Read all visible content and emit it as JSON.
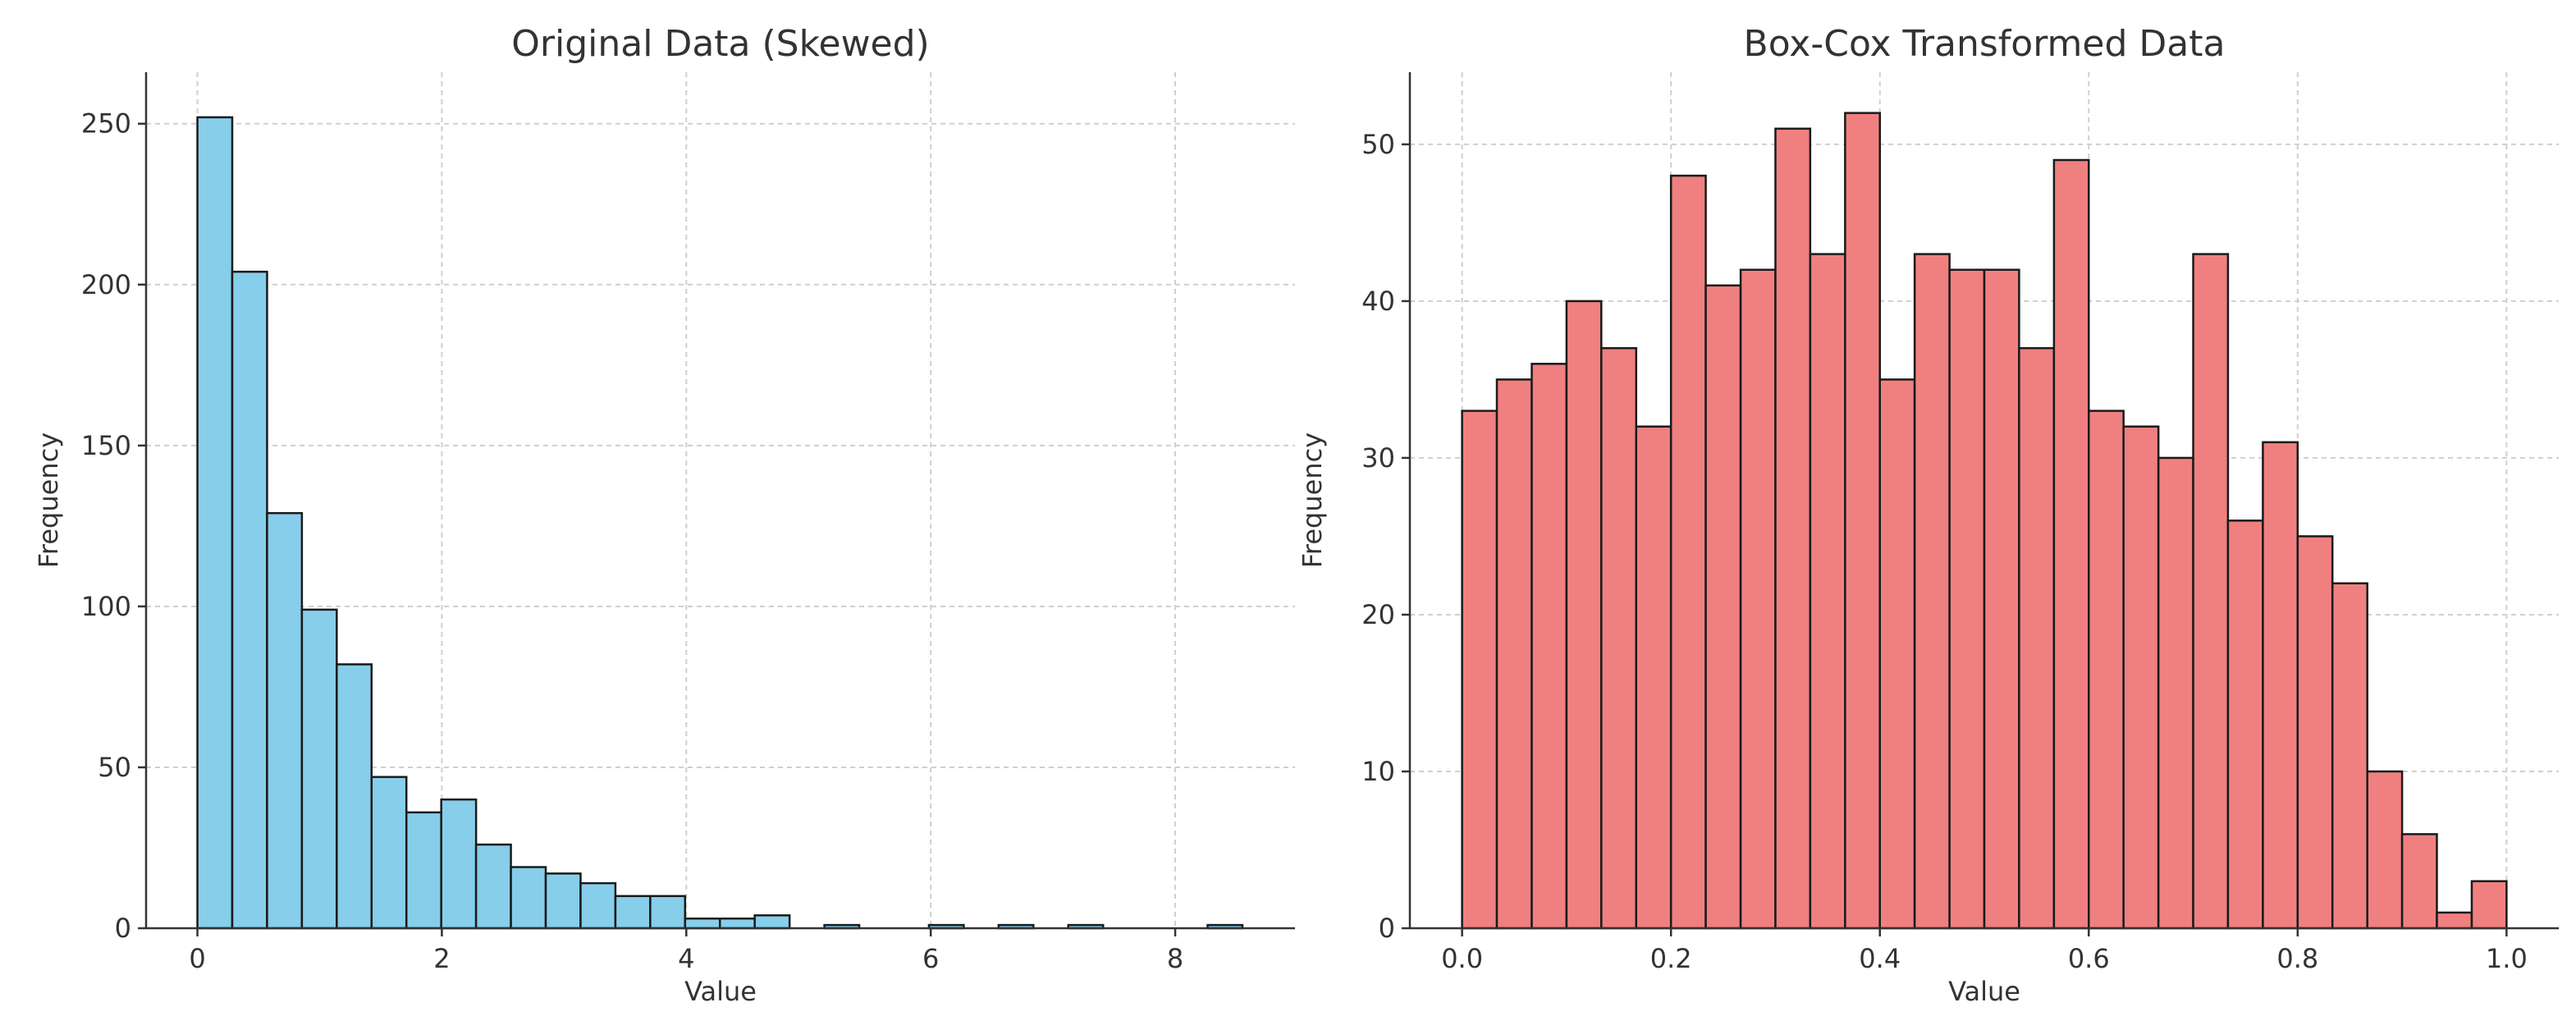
{
  "chart_data": [
    {
      "type": "bar",
      "title": "Original Data (Skewed)",
      "xlabel": "Value",
      "ylabel": "Frequency",
      "xlim": [
        -0.42,
        8.98
      ],
      "ylim": [
        0,
        266
      ],
      "xticks": [
        "0",
        "2",
        "4",
        "6",
        "8"
      ],
      "yticks": [
        "0",
        "50",
        "100",
        "150",
        "200",
        "250"
      ],
      "grid": true,
      "color": "#87ceeb",
      "edge_color": "#1a1a1a",
      "bin_edges": [
        0.0,
        0.285,
        0.57,
        0.855,
        1.14,
        1.425,
        1.71,
        1.995,
        2.28,
        2.565,
        2.85,
        3.135,
        3.42,
        3.705,
        3.99,
        4.275,
        4.56,
        4.845,
        5.13,
        5.415,
        5.7,
        5.985,
        6.27,
        6.555,
        6.84,
        7.125,
        7.41,
        7.695,
        7.98,
        8.265,
        8.55
      ],
      "values": [
        252,
        204,
        129,
        99,
        82,
        47,
        36,
        40,
        26,
        19,
        17,
        14,
        10,
        10,
        3,
        3,
        4,
        0,
        1,
        0,
        0,
        1,
        0,
        1,
        0,
        1,
        0,
        0,
        0,
        1
      ]
    },
    {
      "type": "bar",
      "title": "Box-Cox Transformed Data",
      "xlabel": "Value",
      "ylabel": "Frequency",
      "xlim": [
        -0.05,
        1.05
      ],
      "ylim": [
        0,
        54.6
      ],
      "xticks": [
        "0.0",
        "0.2",
        "0.4",
        "0.6",
        "0.8",
        "1.0"
      ],
      "yticks": [
        "0",
        "10",
        "20",
        "30",
        "40",
        "50"
      ],
      "grid": true,
      "color": "#f08080",
      "edge_color": "#1a1a1a",
      "bin_edges": [
        0.0,
        0.0333,
        0.0667,
        0.1,
        0.1333,
        0.1667,
        0.2,
        0.2333,
        0.2667,
        0.3,
        0.3333,
        0.3667,
        0.4,
        0.4333,
        0.4667,
        0.5,
        0.5333,
        0.5667,
        0.6,
        0.6333,
        0.6667,
        0.7,
        0.7333,
        0.7667,
        0.8,
        0.8333,
        0.8667,
        0.9,
        0.9333,
        0.9667,
        1.0
      ],
      "values": [
        33,
        35,
        36,
        40,
        37,
        32,
        48,
        41,
        42,
        51,
        43,
        52,
        35,
        43,
        42,
        42,
        37,
        49,
        33,
        32,
        30,
        43,
        26,
        31,
        25,
        22,
        10,
        6,
        1,
        3
      ]
    }
  ]
}
